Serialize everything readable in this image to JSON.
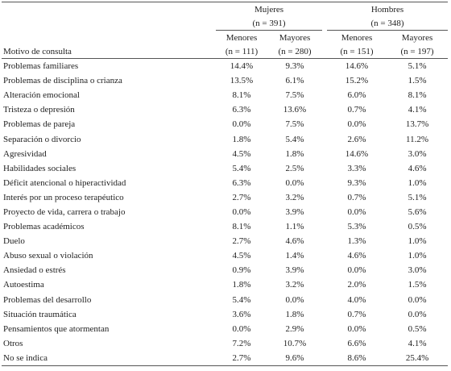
{
  "table": {
    "column_label": "Motivo de consulta",
    "groups": [
      {
        "title": "Mujeres",
        "n": "(n = 391)",
        "subgroups": [
          {
            "title": "Menores",
            "n": "(n = 111)"
          },
          {
            "title": "Mayores",
            "n": "(n = 280)"
          }
        ]
      },
      {
        "title": "Hombres",
        "n": "(n = 348)",
        "subgroups": [
          {
            "title": "Menores",
            "n": "(n = 151)"
          },
          {
            "title": "Mayores",
            "n": "(n = 197)"
          }
        ]
      }
    ],
    "rows": [
      {
        "label": "Problemas familiares",
        "values": [
          "14.4%",
          "9.3%",
          "14.6%",
          "5.1%"
        ]
      },
      {
        "label": "Problemas de disciplina o crianza",
        "values": [
          "13.5%",
          "6.1%",
          "15.2%",
          "1.5%"
        ]
      },
      {
        "label": "Alteración emocional",
        "values": [
          "8.1%",
          "7.5%",
          "6.0%",
          "8.1%"
        ]
      },
      {
        "label": "Tristeza o depresión",
        "values": [
          "6.3%",
          "13.6%",
          "0.7%",
          "4.1%"
        ]
      },
      {
        "label": "Problemas de pareja",
        "values": [
          "0.0%",
          "7.5%",
          "0.0%",
          "13.7%"
        ]
      },
      {
        "label": "Separación o divorcio",
        "values": [
          "1.8%",
          "5.4%",
          "2.6%",
          "11.2%"
        ]
      },
      {
        "label": "Agresividad",
        "values": [
          "4.5%",
          "1.8%",
          "14.6%",
          "3.0%"
        ]
      },
      {
        "label": "Habilidades sociales",
        "values": [
          "5.4%",
          "2.5%",
          "3.3%",
          "4.6%"
        ]
      },
      {
        "label": "Déficit atencional o hiperactividad",
        "values": [
          "6.3%",
          "0.0%",
          "9.3%",
          "1.0%"
        ]
      },
      {
        "label": "Interés por un proceso terapéutico",
        "values": [
          "2.7%",
          "3.2%",
          "0.7%",
          "5.1%"
        ]
      },
      {
        "label": "Proyecto de vida, carrera o trabajo",
        "values": [
          "0.0%",
          "3.9%",
          "0.0%",
          "5.6%"
        ]
      },
      {
        "label": "Problemas académicos",
        "values": [
          "8.1%",
          "1.1%",
          "5.3%",
          "0.5%"
        ]
      },
      {
        "label": "Duelo",
        "values": [
          "2.7%",
          "4.6%",
          "1.3%",
          "1.0%"
        ]
      },
      {
        "label": "Abuso sexual o violación",
        "values": [
          "4.5%",
          "1.4%",
          "4.6%",
          "1.0%"
        ]
      },
      {
        "label": "Ansiedad o estrés",
        "values": [
          "0.9%",
          "3.9%",
          "0.0%",
          "3.0%"
        ]
      },
      {
        "label": "Autoestima",
        "values": [
          "1.8%",
          "3.2%",
          "2.0%",
          "1.5%"
        ]
      },
      {
        "label": "Problemas del desarrollo",
        "values": [
          "5.4%",
          "0.0%",
          "4.0%",
          "0.0%"
        ]
      },
      {
        "label": "Situación traumática",
        "values": [
          "3.6%",
          "1.8%",
          "0.7%",
          "0.0%"
        ]
      },
      {
        "label": "Pensamientos que atormentan",
        "values": [
          "0.0%",
          "2.9%",
          "0.0%",
          "0.5%"
        ]
      },
      {
        "label": "Otros",
        "values": [
          "7.2%",
          "10.7%",
          "6.6%",
          "4.1%"
        ]
      },
      {
        "label": "No se indica",
        "values": [
          "2.7%",
          "9.6%",
          "8.6%",
          "25.4%"
        ]
      }
    ]
  }
}
